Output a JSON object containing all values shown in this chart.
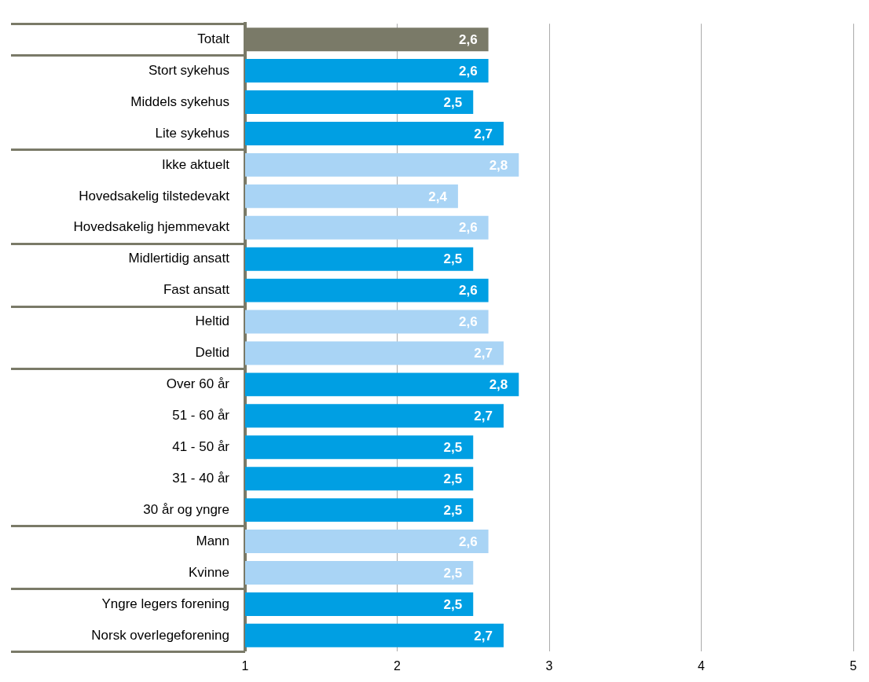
{
  "chart_data": {
    "type": "bar",
    "orientation": "horizontal",
    "categories": [
      "Totalt",
      "Stort sykehus",
      "Middels sykehus",
      "Lite sykehus",
      "Ikke aktuelt",
      "Hovedsakelig tilstedevakt",
      "Hovedsakelig hjemmevakt",
      "Midlertidig ansatt",
      "Fast ansatt",
      "Heltid",
      "Deltid",
      "Over 60 år",
      "51 - 60 år",
      "41 - 50 år",
      "31 - 40 år",
      "30 år og yngre",
      "Mann",
      "Kvinne",
      "Yngre legers forening",
      "Norsk overlegeforening"
    ],
    "values": [
      2.6,
      2.6,
      2.5,
      2.7,
      2.8,
      2.4,
      2.6,
      2.5,
      2.6,
      2.6,
      2.7,
      2.8,
      2.7,
      2.5,
      2.5,
      2.5,
      2.6,
      2.5,
      2.5,
      2.7
    ],
    "colors": [
      "#7a7a68",
      "#009fe3",
      "#009fe3",
      "#009fe3",
      "#a9d4f5",
      "#a9d4f5",
      "#a9d4f5",
      "#009fe3",
      "#009fe3",
      "#a9d4f5",
      "#a9d4f5",
      "#009fe3",
      "#009fe3",
      "#009fe3",
      "#009fe3",
      "#009fe3",
      "#a9d4f5",
      "#a9d4f5",
      "#009fe3",
      "#009fe3"
    ],
    "value_labels": [
      "2,6",
      "2,6",
      "2,5",
      "2,7",
      "2,8",
      "2,4",
      "2,6",
      "2,5",
      "2,6",
      "2,6",
      "2,7",
      "2,8",
      "2,7",
      "2,5",
      "2,5",
      "2,5",
      "2,6",
      "2,5",
      "2,5",
      "2,7"
    ],
    "xlim": [
      1,
      5
    ],
    "xticks": [
      1,
      2,
      3,
      4,
      5
    ],
    "grid": "x",
    "legend": false
  }
}
